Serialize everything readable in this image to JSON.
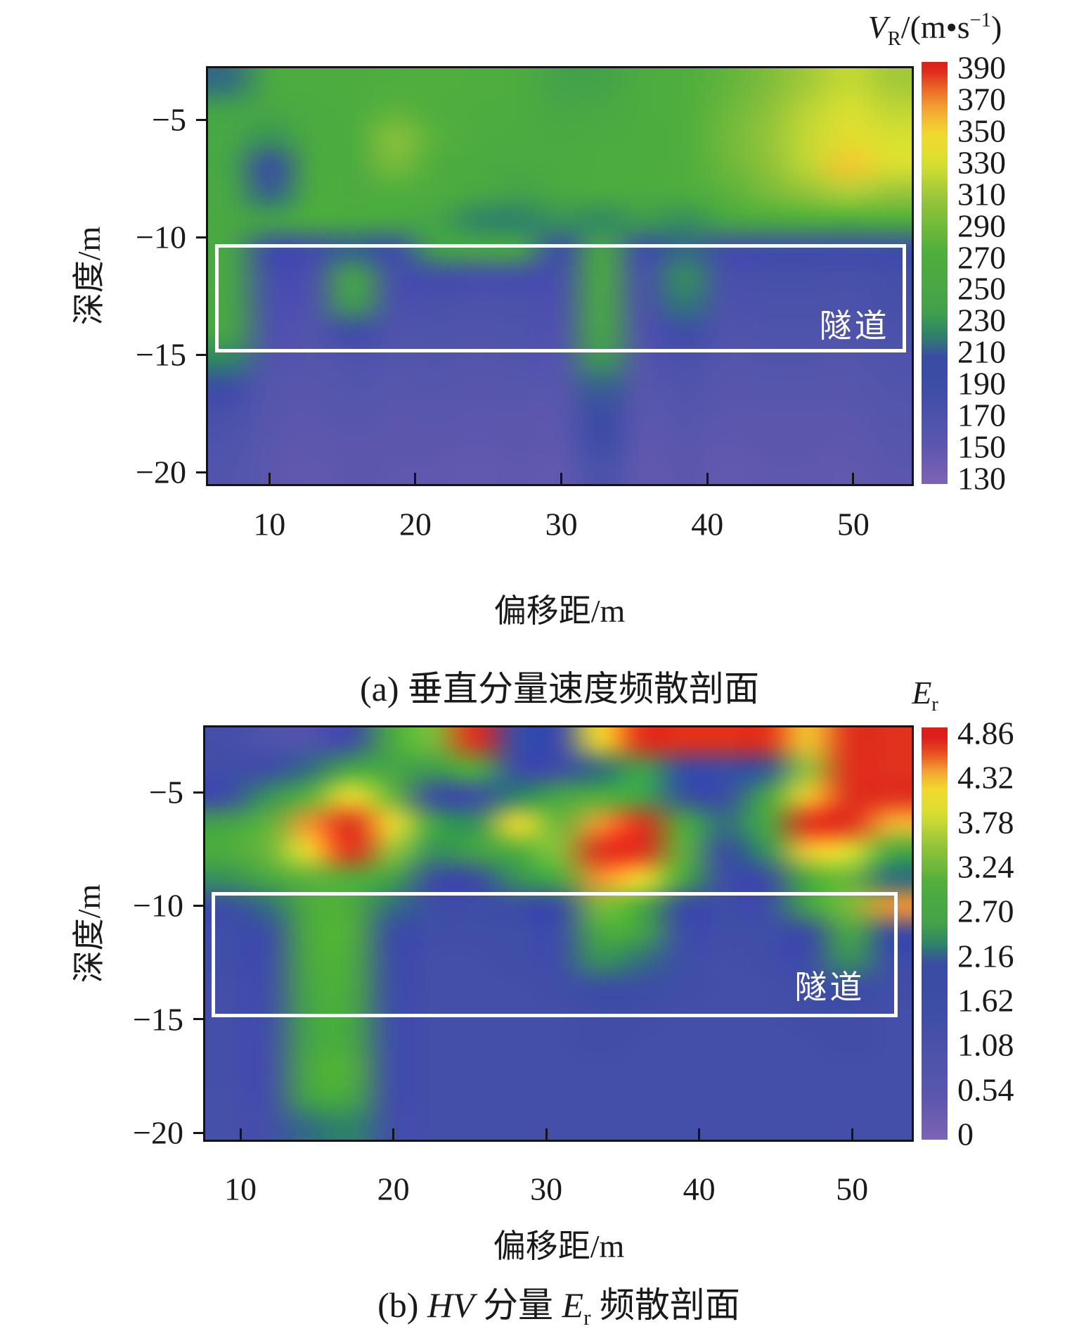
{
  "figure": {
    "background": "#ffffff",
    "border_color": "#141414",
    "tunnel_line_color": "#ffffff"
  },
  "chart_data": [
    {
      "type": "heatmap",
      "panel_id": "a",
      "caption": "(a) 垂直分量速度频散剖面",
      "xlabel": "偏移距/m",
      "ylabel": "深度/m",
      "x_ticks": [
        10,
        20,
        30,
        40,
        50
      ],
      "y_ticks": [
        -5,
        -10,
        -15,
        -20
      ],
      "x_range": [
        5.8,
        54.0
      ],
      "depth_range": [
        -2.8,
        -20.5
      ],
      "grid_on": false,
      "colorbar": {
        "title": {
          "pre": "V",
          "sub": "R",
          "post": "/(m•s",
          "sup": "−1",
          "end": ")"
        },
        "ticks": [
          "390",
          "370",
          "350",
          "330",
          "310",
          "290",
          "270",
          "250",
          "230",
          "210",
          "190",
          "170",
          "150",
          "130"
        ],
        "vmin": 125,
        "vmax": 395
      },
      "colormap": [
        [
          0.0,
          "#7e63b5"
        ],
        [
          0.09,
          "#5b57ad"
        ],
        [
          0.22,
          "#3f4ea8"
        ],
        [
          0.3,
          "#3a4ba4"
        ],
        [
          0.355,
          "#2e8468"
        ],
        [
          0.41,
          "#42a24a"
        ],
        [
          0.55,
          "#4fae3c"
        ],
        [
          0.68,
          "#9ac63a"
        ],
        [
          0.76,
          "#d8e030"
        ],
        [
          0.83,
          "#f2d92e"
        ],
        [
          0.89,
          "#f2a433"
        ],
        [
          0.94,
          "#ea6526"
        ],
        [
          0.985,
          "#dc1f1a"
        ],
        [
          1.0,
          "#dc1f1a"
        ]
      ],
      "tunnel": {
        "label": "隧道",
        "x": [
          6.3,
          53.6
        ],
        "depth": [
          -10.3,
          -14.9
        ]
      },
      "grid": {
        "cols": 17,
        "rows": 15,
        "values": [
          [
            215,
            258,
            266,
            268,
            272,
            274,
            272,
            268,
            238,
            240,
            266,
            272,
            282,
            296,
            312,
            324,
            312
          ],
          [
            240,
            250,
            264,
            268,
            280,
            272,
            268,
            266,
            250,
            255,
            268,
            272,
            286,
            302,
            320,
            332,
            322
          ],
          [
            250,
            228,
            262,
            266,
            300,
            278,
            266,
            264,
            258,
            264,
            268,
            272,
            290,
            306,
            324,
            338,
            330
          ],
          [
            244,
            204,
            256,
            264,
            292,
            270,
            262,
            258,
            262,
            266,
            268,
            270,
            286,
            302,
            322,
            354,
            332
          ],
          [
            252,
            212,
            260,
            264,
            272,
            266,
            254,
            236,
            256,
            262,
            264,
            266,
            278,
            292,
            306,
            316,
            308
          ],
          [
            256,
            238,
            260,
            256,
            250,
            244,
            222,
            220,
            228,
            224,
            232,
            226,
            246,
            256,
            266,
            260,
            268
          ],
          [
            250,
            190,
            182,
            212,
            188,
            235,
            250,
            245,
            190,
            256,
            184,
            214,
            182,
            184,
            185,
            183,
            188
          ],
          [
            253,
            178,
            172,
            244,
            176,
            182,
            176,
            178,
            176,
            260,
            172,
            226,
            174,
            176,
            176,
            174,
            180
          ],
          [
            250,
            170,
            164,
            234,
            170,
            172,
            168,
            170,
            168,
            256,
            168,
            218,
            168,
            170,
            170,
            168,
            175
          ],
          [
            248,
            166,
            161,
            190,
            164,
            166,
            163,
            165,
            163,
            250,
            163,
            192,
            163,
            165,
            165,
            163,
            170
          ],
          [
            222,
            162,
            157,
            166,
            159,
            161,
            158,
            160,
            159,
            232,
            158,
            172,
            158,
            160,
            160,
            158,
            165
          ],
          [
            192,
            157,
            153,
            159,
            155,
            156,
            153,
            155,
            154,
            212,
            154,
            163,
            153,
            155,
            155,
            154,
            161
          ],
          [
            174,
            154,
            150,
            155,
            151,
            152,
            150,
            151,
            150,
            205,
            151,
            157,
            150,
            151,
            151,
            150,
            157
          ],
          [
            166,
            151,
            148,
            151,
            149,
            149,
            147,
            149,
            148,
            196,
            148,
            152,
            147,
            149,
            149,
            148,
            154
          ],
          [
            160,
            149,
            146,
            149,
            147,
            147,
            145,
            147,
            146,
            172,
            146,
            149,
            145,
            147,
            147,
            146,
            151
          ]
        ]
      }
    },
    {
      "type": "heatmap",
      "panel_id": "b",
      "caption_parts": {
        "pre": "(b) ",
        "italic1": "HV",
        "mid": " 分量 ",
        "italic2": "E",
        "sub": "r",
        "end": " 频散剖面"
      },
      "xlabel": "偏移距/m",
      "ylabel": "深度/m",
      "x_ticks": [
        10,
        20,
        30,
        40,
        50
      ],
      "y_ticks": [
        -5,
        -10,
        -15,
        -20
      ],
      "x_range": [
        7.7,
        53.9
      ],
      "depth_range": [
        -2.15,
        -20.3
      ],
      "grid_on": false,
      "colorbar": {
        "title": {
          "pre": "E",
          "sub": "r",
          "post": "",
          "sup": "",
          "end": ""
        },
        "ticks": [
          "4.86",
          "4.32",
          "3.78",
          "3.24",
          "2.70",
          "2.16",
          "1.62",
          "1.08",
          "0.54",
          "0"
        ],
        "vmin": -0.27,
        "vmax": 5.13
      },
      "colormap": [
        [
          0.0,
          "#7e63b5"
        ],
        [
          0.1,
          "#5b57ad"
        ],
        [
          0.3,
          "#3f4ea8"
        ],
        [
          0.43,
          "#3a4ba4"
        ],
        [
          0.475,
          "#2e8468"
        ],
        [
          0.52,
          "#42a24a"
        ],
        [
          0.62,
          "#4fae3c"
        ],
        [
          0.72,
          "#9ac63a"
        ],
        [
          0.79,
          "#d8e030"
        ],
        [
          0.85,
          "#f2d92e"
        ],
        [
          0.895,
          "#f2a433"
        ],
        [
          0.93,
          "#ea5a23"
        ],
        [
          0.97,
          "#dc1f1a"
        ],
        [
          1.0,
          "#dc1f1a"
        ]
      ],
      "tunnel": {
        "label": "隧道",
        "x": [
          8.1,
          53.0
        ],
        "depth": [
          -9.4,
          -14.9
        ]
      },
      "grid": {
        "cols": 17,
        "rows": 15,
        "values": [
          [
            1.2,
            0.8,
            0.7,
            1.5,
            2.9,
            3.4,
            4.9,
            1.9,
            1.5,
            4.3,
            4.9,
            4.9,
            4.9,
            4.9,
            4.4,
            4.9,
            4.9
          ],
          [
            1.3,
            1.5,
            2.2,
            2.8,
            2.7,
            2.5,
            3.1,
            1.8,
            1.5,
            2.2,
            2.6,
            1.9,
            1.8,
            2.1,
            3.6,
            4.9,
            4.9
          ],
          [
            1.6,
            2.4,
            3.2,
            4.3,
            3.3,
            1.8,
            1.7,
            2.3,
            2.7,
            3.1,
            2.7,
            2.1,
            1.8,
            2.7,
            4.4,
            4.9,
            4.9
          ],
          [
            2.6,
            3.2,
            4.6,
            4.9,
            4.3,
            2.6,
            2.4,
            4.3,
            3.3,
            4.6,
            4.9,
            3.0,
            2.2,
            2.9,
            4.9,
            4.9,
            4.5
          ],
          [
            3.0,
            3.3,
            4.3,
            4.9,
            3.6,
            2.4,
            2.6,
            3.1,
            3.5,
            4.9,
            4.9,
            3.2,
            2.0,
            2.4,
            4.4,
            4.1,
            2.9
          ],
          [
            2.4,
            2.8,
            3.2,
            3.1,
            2.6,
            1.8,
            2.0,
            2.4,
            2.9,
            4.6,
            4.3,
            2.8,
            1.7,
            1.8,
            3.0,
            3.3,
            2.2
          ],
          [
            1.7,
            2.2,
            3.0,
            3.0,
            2.2,
            1.5,
            1.5,
            1.7,
            2.0,
            3.4,
            3.0,
            2.0,
            1.5,
            1.6,
            2.6,
            3.4,
            4.6
          ],
          [
            1.4,
            1.8,
            3.0,
            3.1,
            1.9,
            1.3,
            1.3,
            1.4,
            1.6,
            2.9,
            2.6,
            1.6,
            1.3,
            1.4,
            2.0,
            2.9,
            1.8
          ],
          [
            1.3,
            1.6,
            2.9,
            3.0,
            1.7,
            1.2,
            1.2,
            1.3,
            1.4,
            2.4,
            2.2,
            1.4,
            1.2,
            1.3,
            1.6,
            2.4,
            1.5
          ],
          [
            1.2,
            1.4,
            2.8,
            2.9,
            1.5,
            1.2,
            1.2,
            1.2,
            1.3,
            1.8,
            1.6,
            1.3,
            1.2,
            1.2,
            1.4,
            1.8,
            1.3
          ],
          [
            1.2,
            1.3,
            2.7,
            2.8,
            1.4,
            1.2,
            1.2,
            1.2,
            1.2,
            1.4,
            1.3,
            1.2,
            1.2,
            1.2,
            1.3,
            1.4,
            1.2
          ],
          [
            1.2,
            1.2,
            2.7,
            2.8,
            1.3,
            1.2,
            1.2,
            1.2,
            1.2,
            1.3,
            1.2,
            1.2,
            1.2,
            1.2,
            1.2,
            1.3,
            1.2
          ],
          [
            1.2,
            1.2,
            2.9,
            3.1,
            1.3,
            1.2,
            1.2,
            1.2,
            1.2,
            1.2,
            1.2,
            1.2,
            1.2,
            1.2,
            1.2,
            1.2,
            1.2
          ],
          [
            1.1,
            1.2,
            2.6,
            2.7,
            1.3,
            1.2,
            1.2,
            1.2,
            1.2,
            1.2,
            1.2,
            1.2,
            1.2,
            1.2,
            1.2,
            1.2,
            1.2
          ],
          [
            1.1,
            1.2,
            2.2,
            2.3,
            1.2,
            1.2,
            1.2,
            1.2,
            1.2,
            1.2,
            1.2,
            1.2,
            1.2,
            1.2,
            1.2,
            1.2,
            1.2
          ]
        ]
      }
    }
  ]
}
